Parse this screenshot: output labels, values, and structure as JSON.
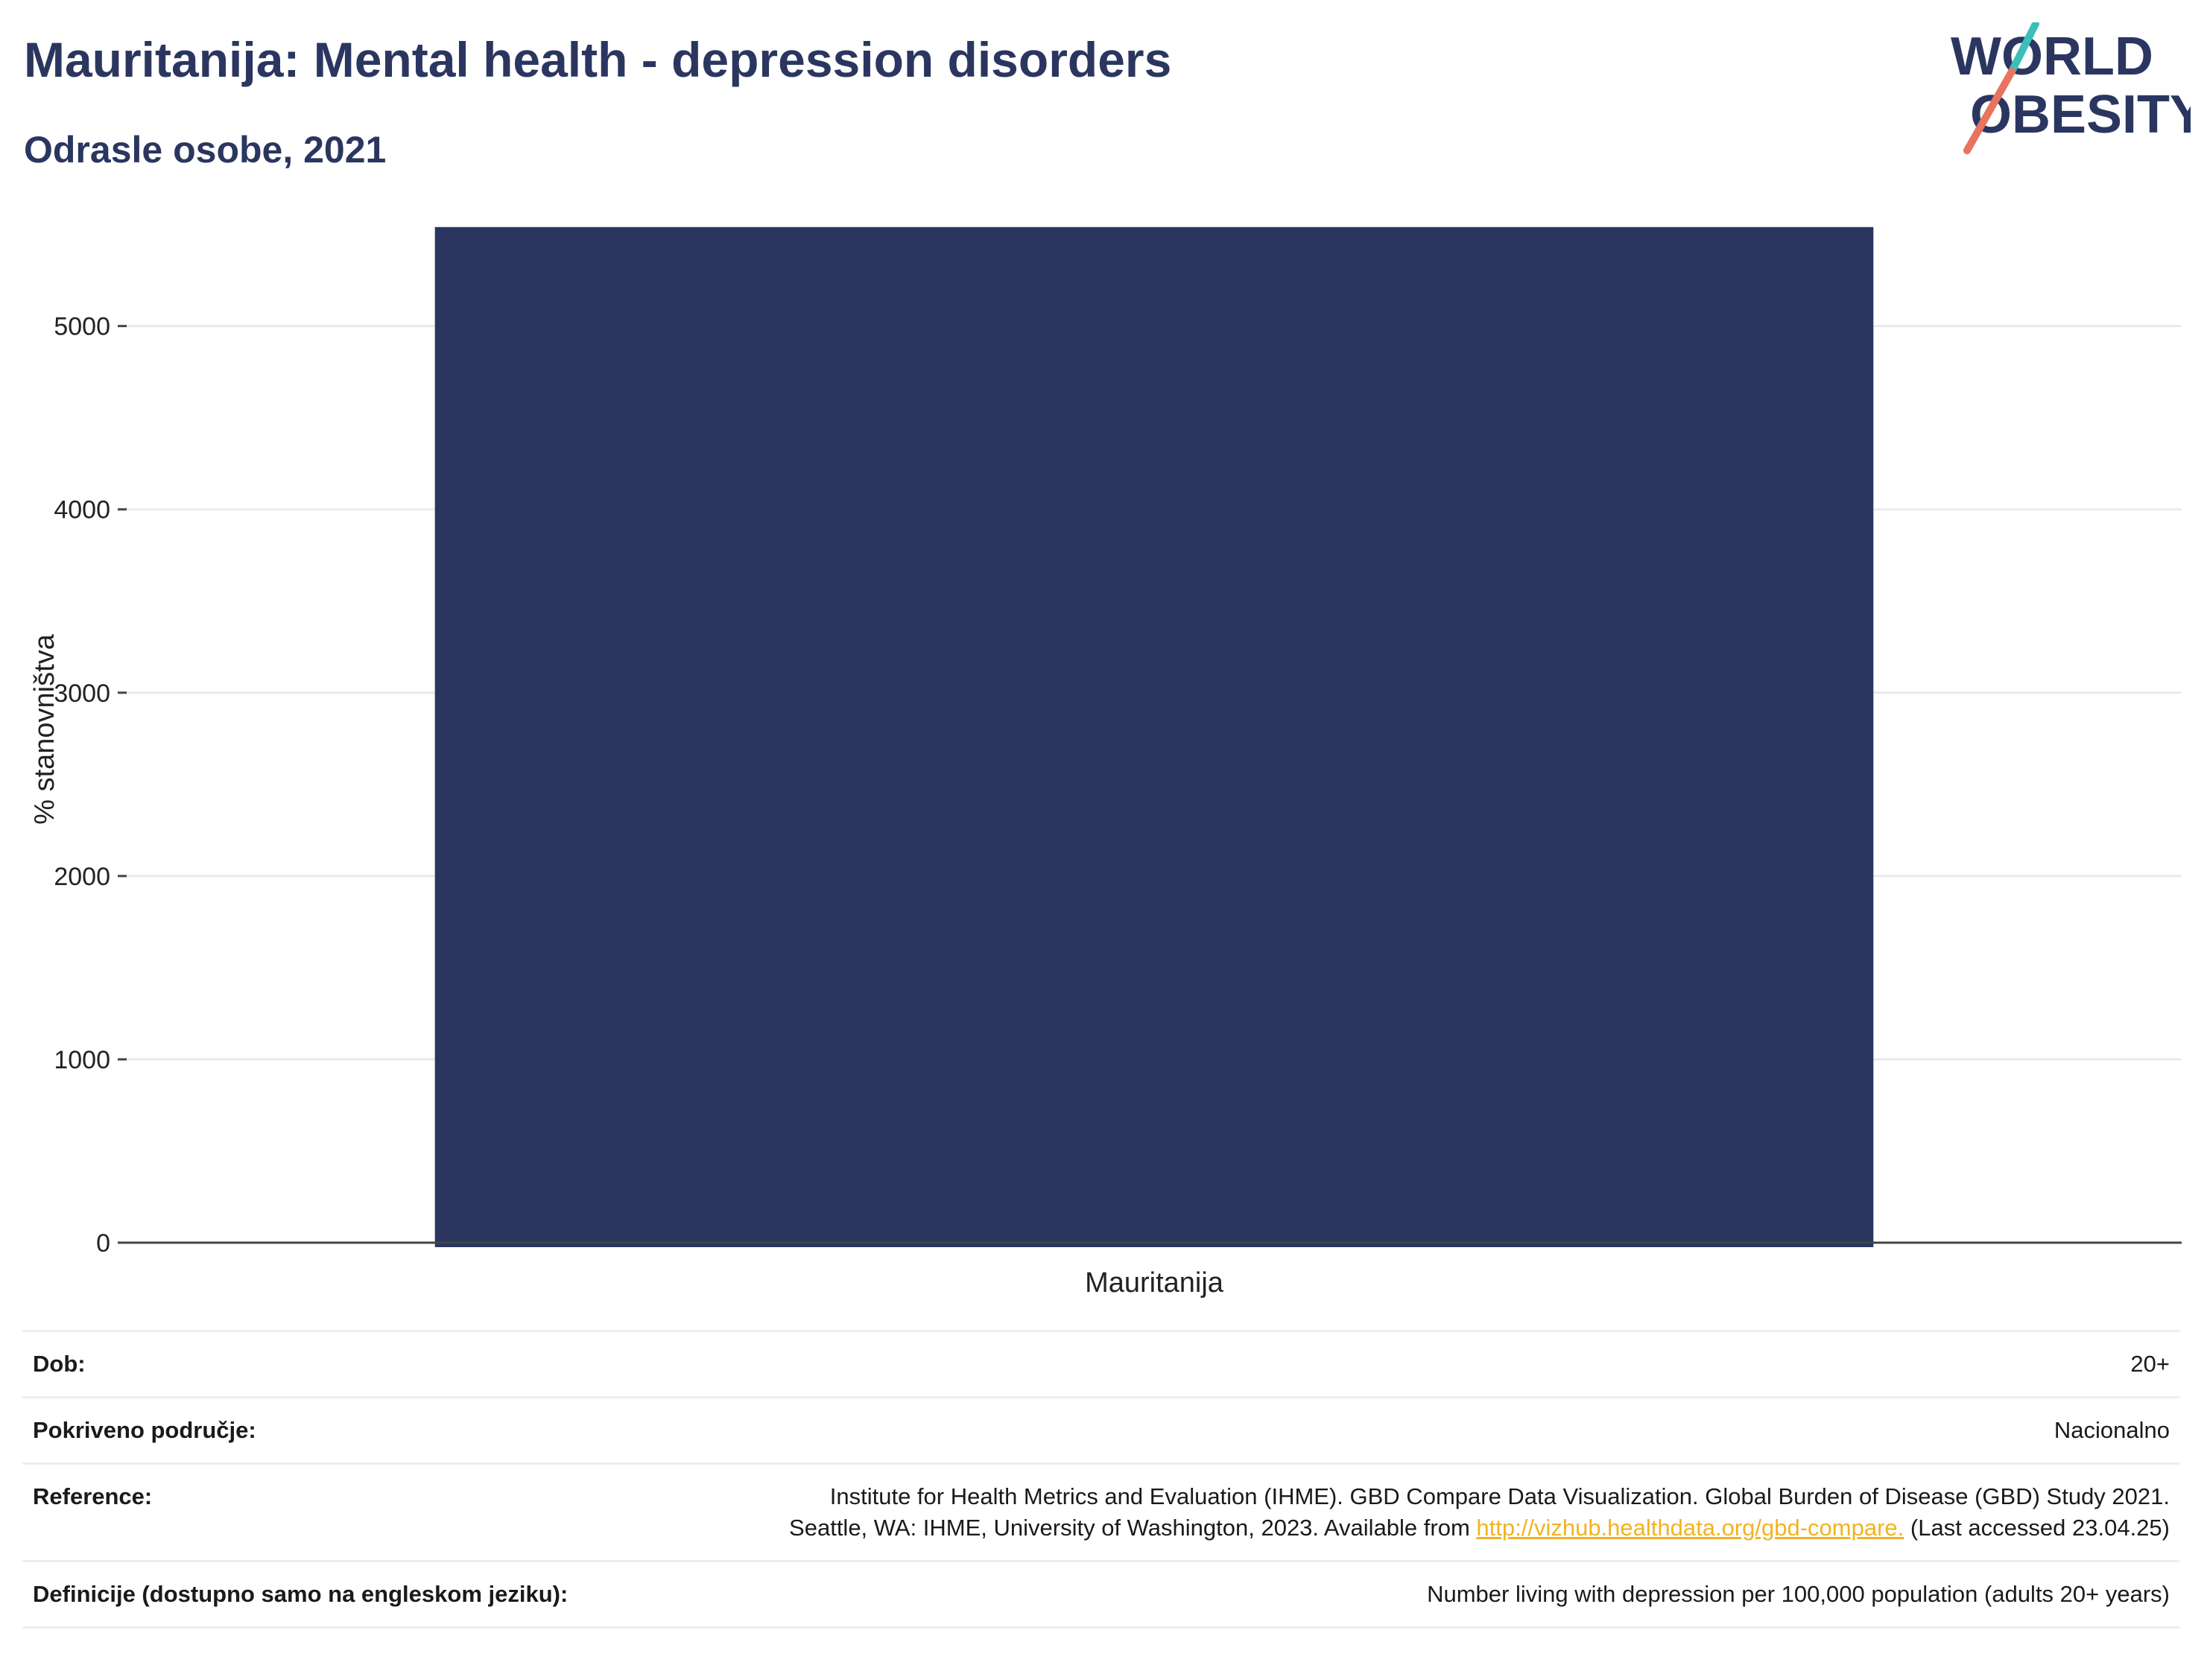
{
  "header": {
    "title": "Mauritanija: Mental health - depression disorders",
    "subtitle": "Odrasle osobe, 2021"
  },
  "logo": {
    "line1": "WORLD",
    "line2": "OBESITY",
    "colors": {
      "text": "#2b3660",
      "accent_teal": "#3bbfb8",
      "accent_coral": "#e8735f"
    }
  },
  "chart_data": {
    "type": "bar",
    "categories": [
      "Mauritanija"
    ],
    "values": [
      5540
    ],
    "xlabel": "",
    "ylabel": "% stanovništva",
    "ylim": [
      0,
      5600
    ],
    "yticks": [
      0,
      1000,
      2000,
      3000,
      4000,
      5000
    ],
    "grid": true,
    "bar_color": "#2b3660"
  },
  "meta": {
    "rows": [
      {
        "label": "Dob:",
        "value": "20+"
      },
      {
        "label": "Pokriveno područje:",
        "value": "Nacionalno"
      },
      {
        "label": "Reference:",
        "value_line1": "Institute for Health Metrics and Evaluation (IHME). GBD Compare Data Visualization. Global Burden of Disease (GBD) Study 2021.",
        "value_line2_pre": "Seattle, WA: IHME, University of Washington, 2023. Available from ",
        "link": "http://vizhub.healthdata.org/gbd-compare.",
        "value_line2_post": " (Last accessed 23.04.25)"
      },
      {
        "label": "Definicije (dostupno samo na engleskom jeziku):",
        "value": "Number living with depression per 100,000 population (adults 20+ years)"
      }
    ]
  }
}
